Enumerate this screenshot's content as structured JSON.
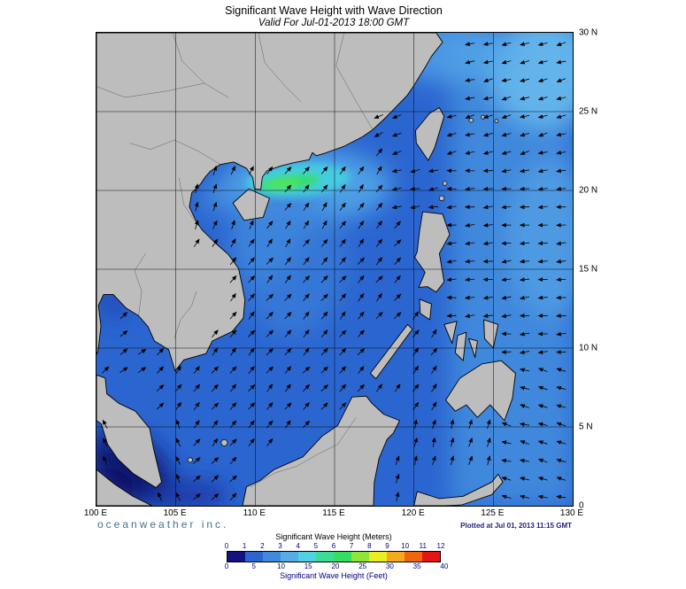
{
  "title": "Significant Wave Height with Wave Direction",
  "subtitle": "Valid For Jul-01-2013 18:00 GMT",
  "branding": "oceanweather inc.",
  "plotted_note": "Plotted at Jul 01, 2013 11:15 GMT",
  "map": {
    "lon_range": [
      100,
      130
    ],
    "lat_range": [
      0,
      30
    ],
    "grid_step": 5,
    "lon_labels": [
      {
        "text": "100 E",
        "lon": 100
      },
      {
        "text": "105 E",
        "lon": 105
      },
      {
        "text": "110 E",
        "lon": 110
      },
      {
        "text": "115 E",
        "lon": 115
      },
      {
        "text": "120 E",
        "lon": 120
      },
      {
        "text": "125 E",
        "lon": 125
      },
      {
        "text": "130 E",
        "lon": 130
      }
    ],
    "lat_labels": [
      {
        "text": "30 N",
        "lat": 30
      },
      {
        "text": "25 N",
        "lat": 25
      },
      {
        "text": "20 N",
        "lat": 20
      },
      {
        "text": "15 N",
        "lat": 15
      },
      {
        "text": "10 N",
        "lat": 10
      },
      {
        "text": "5 N",
        "lat": 5
      },
      {
        "text": "0",
        "lat": 0
      }
    ],
    "wave_field": {
      "grid_start": 0.55,
      "grid_step": 1.15,
      "arrow_len": 0.55,
      "jitter_deg": 14,
      "zones": [
        {
          "lon": [
            105.5,
            110.6
          ],
          "lat": [
            16.8,
            21.8
          ],
          "deg": 70
        },
        {
          "lon": [
            117.5,
            122.5
          ],
          "lat": [
            5.8,
            11.8
          ],
          "deg": 55
        },
        {
          "lon": [
            117.5,
            125.8
          ],
          "lat": [
            0,
            5.8
          ],
          "deg": 75
        },
        {
          "lon": [
            100,
            104.5
          ],
          "lat": [
            5.5,
            13.5
          ],
          "deg": 40
        },
        {
          "lon": [
            100,
            105.5
          ],
          "lat": [
            0,
            5.5
          ],
          "deg": 115
        },
        {
          "lon": [
            105.5,
            117.5
          ],
          "lat": [
            0,
            3.5
          ],
          "deg": 45
        },
        {
          "lon": [
            108,
            118
          ],
          "lat": [
            15.8,
            23.2
          ],
          "deg": 55
        },
        {
          "lon": [
            113,
            121.8
          ],
          "lat": [
            22,
            30
          ],
          "deg": 205
        },
        {
          "lon": [
            121.8,
            130
          ],
          "lat": [
            22,
            30
          ],
          "deg": 195
        },
        {
          "lon": [
            121.8,
            130
          ],
          "lat": [
            0,
            9
          ],
          "deg": 165
        },
        {
          "lon": [
            121.8,
            130
          ],
          "lat": [
            9,
            22
          ],
          "deg": 185
        },
        {
          "lon": [
            118,
            121.8
          ],
          "lat": [
            18.7,
            22
          ],
          "deg": 190
        },
        {
          "lon": [
            104.5,
            121.8
          ],
          "lat": [
            3.5,
            15.8
          ],
          "deg": 50
        },
        {
          "lon": [
            100,
            130
          ],
          "lat": [
            0,
            30
          ],
          "deg": 50
        }
      ],
      "land_boxes": [
        [
          100,
          110.6,
          21.7,
          30
        ],
        [
          110.6,
          117.2,
          22.9,
          30
        ],
        [
          117.2,
          123,
          25.2,
          30
        ],
        [
          110.6,
          113.8,
          21.5,
          22.9
        ],
        [
          113.8,
          117.2,
          22.3,
          22.9
        ],
        [
          100,
          105.7,
          13.2,
          21.9
        ],
        [
          105.7,
          107.2,
          20.2,
          21.9
        ],
        [
          104.3,
          108.6,
          11.3,
          16.6
        ],
        [
          102.3,
          106.6,
          10.6,
          13.4
        ],
        [
          104.4,
          107.0,
          8.8,
          10.9
        ],
        [
          100,
          100.6,
          9.4,
          13.4
        ],
        [
          100.3,
          103.3,
          5.2,
          7.8
        ],
        [
          101.2,
          104.2,
          1.2,
          5.2
        ],
        [
          100,
          103.5,
          0,
          2.3
        ],
        [
          109.2,
          113.5,
          0,
          3.2
        ],
        [
          111,
          116,
          0,
          4.6
        ],
        [
          114,
          118,
          0,
          6.1
        ],
        [
          115.7,
          119.4,
          3.3,
          7.2
        ],
        [
          120,
          122.3,
          12.9,
          18.7
        ],
        [
          120.05,
          121.95,
          21.8,
          25.4
        ],
        [
          108.5,
          111.05,
          17.9,
          20.2
        ],
        [
          117.2,
          119.95,
          8.5,
          11.5
        ],
        [
          121.9,
          126.6,
          5.6,
          9.7
        ],
        [
          121.8,
          125.6,
          9.1,
          11.8
        ],
        [
          120.2,
          121.3,
          12.0,
          13.7
        ],
        [
          119.8,
          125.5,
          0,
          1.8
        ]
      ]
    }
  },
  "legend": {
    "title_meters": "Significant Wave Height (Meters)",
    "title_feet": "Significant Wave Height (Feet)",
    "meter_ticks": [
      0,
      1,
      2,
      3,
      4,
      5,
      6,
      7,
      8,
      9,
      10,
      11,
      12
    ],
    "feet_ticks": [
      0,
      5,
      10,
      15,
      20,
      25,
      30,
      35,
      40
    ],
    "colors": [
      "#14127e",
      "#2b66d0",
      "#3f8ada",
      "#57ace8",
      "#53d0e2",
      "#3cdc96",
      "#35de5e",
      "#8fe63a",
      "#ecec22",
      "#f4aa1c",
      "#f0650f",
      "#e51515"
    ],
    "ocean_base_color": "#2b66d0",
    "land_color": "#bdbdbd"
  }
}
